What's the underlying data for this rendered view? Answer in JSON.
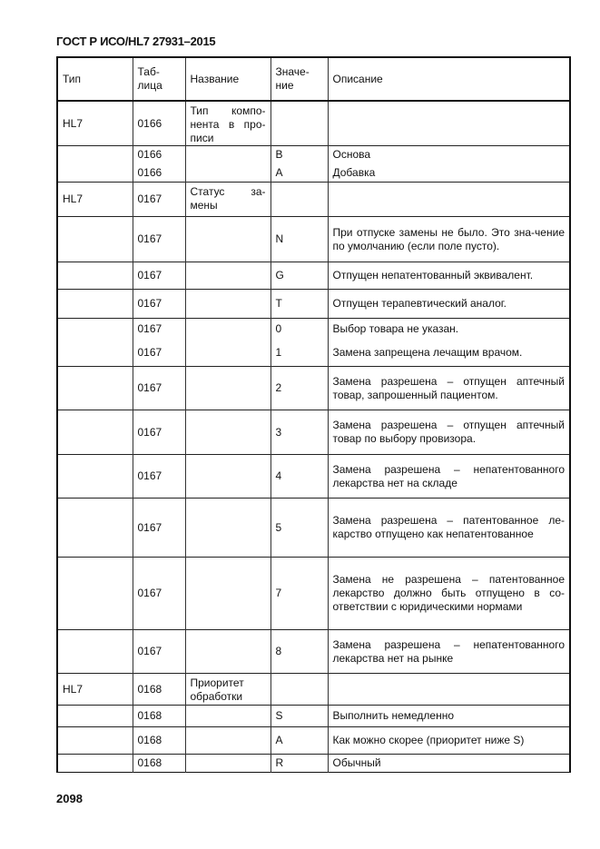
{
  "header": "ГОСТ Р ИСО/HL7 27931–2015",
  "page_number": "2098",
  "columns": [
    "Тип",
    "Таб-\nлица",
    "Название",
    "Значе-\nние",
    "Описание"
  ],
  "rows": [
    {
      "type": "HL7",
      "table": "0166",
      "name": "Тип компо-нента в про-писи",
      "value": "",
      "desc": ""
    },
    {
      "type": "",
      "table": "0166",
      "name": "",
      "value": "B",
      "desc": "Основа"
    },
    {
      "type": "",
      "table": "0166",
      "name": "",
      "value": "A",
      "desc": "Добавка"
    },
    {
      "type": "HL7",
      "table": "0167",
      "name": "Статус за-мены",
      "value": "",
      "desc": ""
    },
    {
      "type": "",
      "table": "0167",
      "name": "",
      "value": "N",
      "desc": "При отпуске замены не было. Это зна-чение по умолчанию (если поле пусто)."
    },
    {
      "type": "",
      "table": "0167",
      "name": "",
      "value": "G",
      "desc": "Отпущен непатентованный эквивалент."
    },
    {
      "type": "",
      "table": "0167",
      "name": "",
      "value": "T",
      "desc": "Отпущен терапевтический аналог."
    },
    {
      "type": "",
      "table": "0167",
      "name": "",
      "value": "0",
      "desc": "Выбор товара не указан."
    },
    {
      "type": "",
      "table": "0167",
      "name": "",
      "value": "1",
      "desc": "Замена запрещена лечащим врачом."
    },
    {
      "type": "",
      "table": "0167",
      "name": "",
      "value": "2",
      "desc": "Замена разрешена – отпущен аптечный товар, запрошенный пациентом."
    },
    {
      "type": "",
      "table": "0167",
      "name": "",
      "value": "3",
      "desc": "Замена разрешена – отпущен аптечный товар по выбору провизора."
    },
    {
      "type": "",
      "table": "0167",
      "name": "",
      "value": "4",
      "desc": "Замена разрешена – непатентованного лекарства нет на складе"
    },
    {
      "type": "",
      "table": "0167",
      "name": "",
      "value": "5",
      "desc": "Замена разрешена – патентованное ле-карство отпущено как непатентованное"
    },
    {
      "type": "",
      "table": "0167",
      "name": "",
      "value": "7",
      "desc": "Замена не разрешена – патентованное лекарство должно быть отпущено в со-ответствии с юридическими нормами"
    },
    {
      "type": "",
      "table": "0167",
      "name": "",
      "value": "8",
      "desc": "Замена разрешена – непатентованного лекарства нет на рынке"
    },
    {
      "type": "HL7",
      "table": "0168",
      "name": "Приоритет обработки",
      "value": "",
      "desc": ""
    },
    {
      "type": "",
      "table": "0168",
      "name": "",
      "value": "S",
      "desc": "Выполнить немедленно"
    },
    {
      "type": "",
      "table": "0168",
      "name": "",
      "value": "A",
      "desc": "Как можно скорее (приоритет ниже S)"
    },
    {
      "type": "",
      "table": "0168",
      "name": "",
      "value": "R",
      "desc": "Обычный"
    }
  ]
}
